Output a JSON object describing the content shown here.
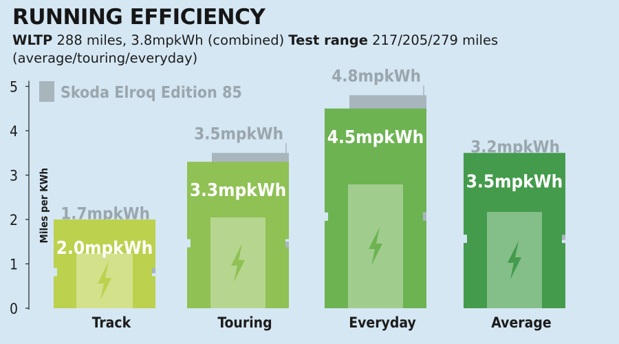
{
  "header": {
    "title": "RUNNING EFFICIENCY",
    "subtitle_wltp_label": "WLTP",
    "subtitle_wltp_text": " 288 miles, 3.8mpkWh (combined) ",
    "subtitle_range_label": "Test range",
    "subtitle_range_text": " 217/205/279 miles (average/touring/everyday)"
  },
  "chart_data": {
    "type": "bar",
    "categories": [
      "Track",
      "Touring",
      "Everyday",
      "Average"
    ],
    "series": [
      {
        "name": "",
        "values": [
          2.0,
          3.3,
          4.5,
          3.5
        ],
        "labels": [
          "2.0mpkWh",
          "3.3mpkWh",
          "4.5mpkWh",
          "3.5mpkWh"
        ],
        "colors": [
          "#bcd14d",
          "#8fc154",
          "#6db352",
          "#439b4b"
        ]
      },
      {
        "name": "Skoda Elroq Edition 85",
        "values": [
          1.7,
          3.5,
          4.8,
          3.2
        ],
        "labels": [
          "1.7mpkWh",
          "3.5mpkWh",
          "4.8mpkWh",
          "3.2mpkWh"
        ],
        "color": "#a8b5bd"
      }
    ],
    "xlabel": "",
    "ylabel": "Miles per KWh",
    "ylim": [
      0,
      5
    ],
    "yticks": [
      0,
      1,
      2,
      3,
      4,
      5
    ],
    "legend": "top-left",
    "grid": false,
    "label_color": "#9aa6ad"
  }
}
